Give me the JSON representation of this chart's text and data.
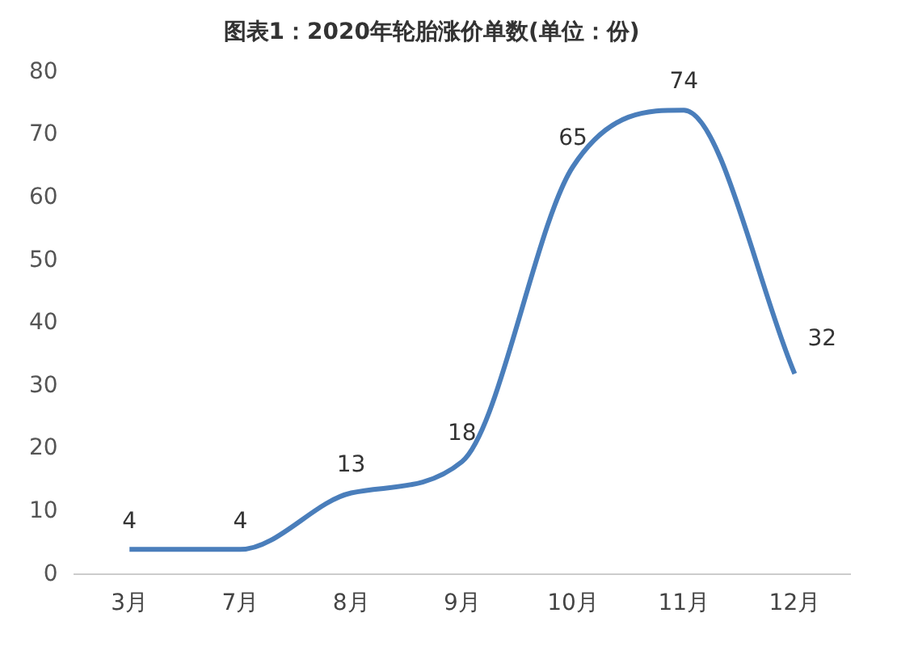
{
  "chart_data": {
    "type": "line",
    "title": "图表1：2020年轮胎涨价单数(单位：份)",
    "categories": [
      "3月",
      "7月",
      "8月",
      "9月",
      "10月",
      "11月",
      "12月"
    ],
    "series": [
      {
        "color": "#4a7ebb",
        "values": [
          4,
          4,
          13,
          18,
          65,
          74,
          32
        ]
      }
    ],
    "ylim": [
      0,
      80
    ],
    "yticks": [
      0,
      10,
      20,
      30,
      40,
      50,
      60,
      70,
      80
    ],
    "grid": false,
    "legend": false,
    "marker": "none",
    "line_style": "solid",
    "data_labels": true
  }
}
